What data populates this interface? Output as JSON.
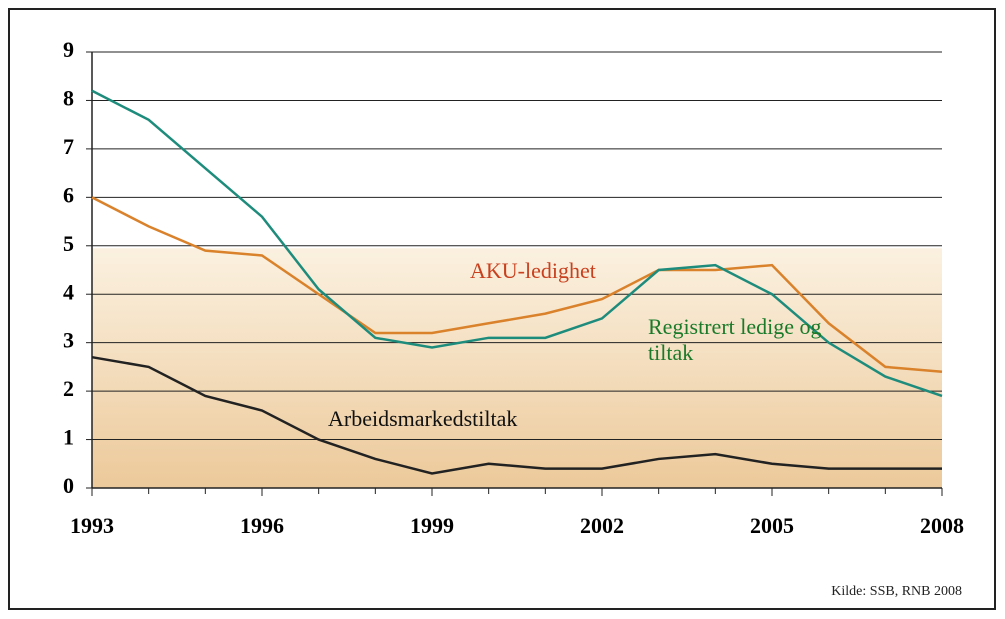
{
  "chart_data": {
    "type": "line",
    "x": [
      1993,
      1994,
      1995,
      1996,
      1997,
      1998,
      1999,
      2000,
      2001,
      2002,
      2003,
      2004,
      2005,
      2006,
      2007,
      2008
    ],
    "series": [
      {
        "name": "AKU-ledighet",
        "color": "#d9822b",
        "label_color": "#c8401e",
        "values": [
          6.0,
          5.4,
          4.9,
          4.8,
          4.0,
          3.2,
          3.2,
          3.4,
          3.6,
          3.9,
          4.5,
          4.5,
          4.6,
          3.4,
          2.5,
          2.4
        ]
      },
      {
        "name": "Registrert ledige og tiltak",
        "color": "#1e8c7c",
        "label_color": "#1a7a2a",
        "values": [
          8.2,
          7.6,
          6.6,
          5.6,
          4.1,
          3.1,
          2.9,
          3.1,
          3.1,
          3.5,
          4.5,
          4.6,
          4.0,
          3.0,
          2.3,
          1.9
        ]
      },
      {
        "name": "Arbeidsmarkedstiltak",
        "color": "#222222",
        "label_color": "#111111",
        "values": [
          2.7,
          2.5,
          1.9,
          1.6,
          1.0,
          0.6,
          0.3,
          0.5,
          0.4,
          0.4,
          0.6,
          0.7,
          0.5,
          0.4,
          0.4,
          0.4
        ]
      }
    ],
    "xlim": [
      1993,
      2008
    ],
    "xticks": [
      1993,
      1996,
      1999,
      2002,
      2005,
      2008
    ],
    "ylim": [
      0,
      9
    ],
    "yticks": [
      0,
      1,
      2,
      3,
      4,
      5,
      6,
      7,
      8,
      9
    ],
    "grid": true,
    "source": "Kilde: SSB, RNB 2008"
  }
}
